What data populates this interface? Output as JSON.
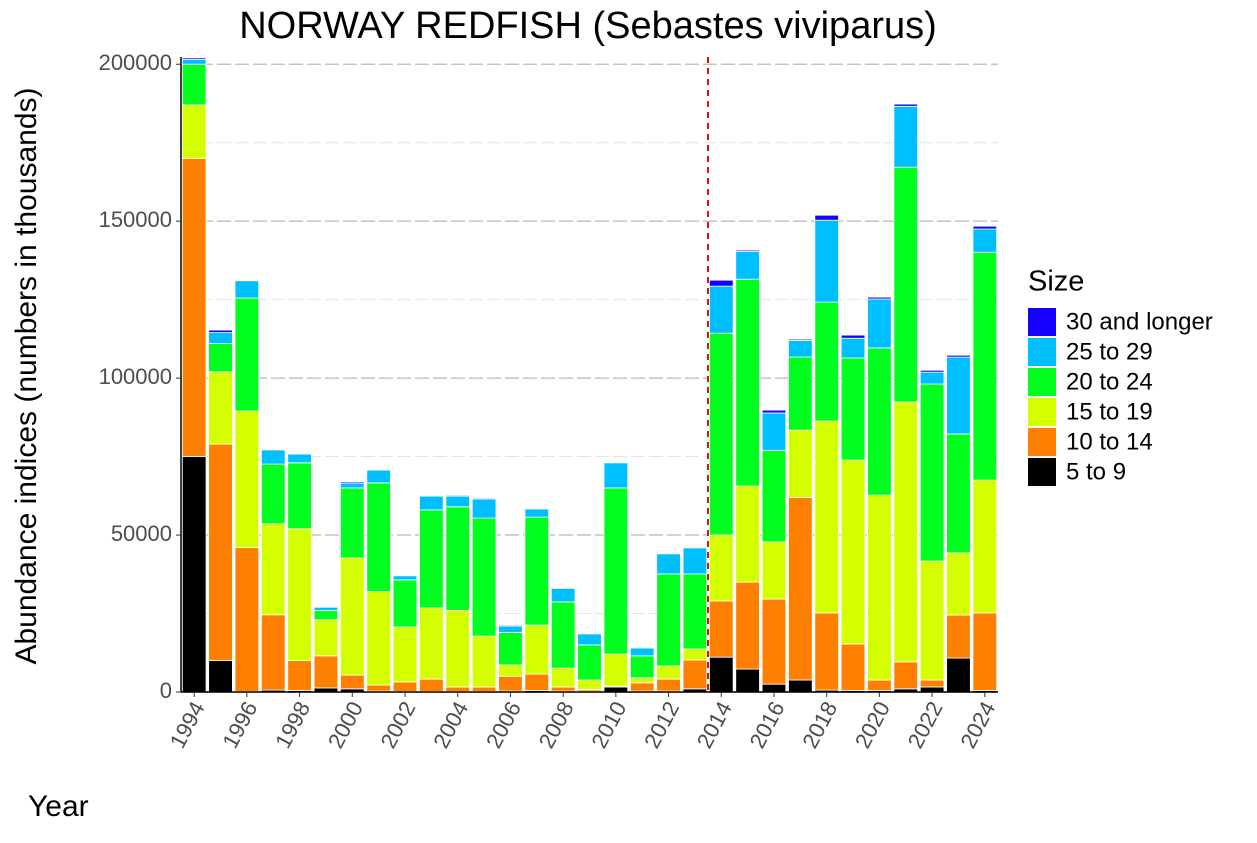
{
  "chart_data": {
    "type": "stacked_bar",
    "title": "NORWAY REDFISH (Sebastes viviparus)",
    "x_label": "Year",
    "y_label": "Abundance indices (numbers in thousands)",
    "legend_title": "Size",
    "legend_position": "right",
    "categories": [
      "1994",
      null,
      "1996",
      null,
      "1998",
      null,
      "2000",
      null,
      "2002",
      null,
      "2004",
      null,
      "2006",
      null,
      "2008",
      null,
      "2010",
      null,
      "2012",
      null,
      "2014",
      null,
      "2016",
      null,
      "2018",
      null,
      "2020",
      null,
      "2022",
      null,
      "2024"
    ],
    "series": [
      {
        "name": "5 to 9",
        "color": "#000000",
        "values": [
          75000,
          10000,
          200,
          600,
          500,
          1300,
          1000,
          300,
          200,
          200,
          200,
          200,
          300,
          500,
          300,
          300,
          1600,
          300,
          300,
          1000,
          11100,
          7300,
          2500,
          3800,
          600,
          500,
          500,
          1000,
          1600,
          10800,
          500
        ]
      },
      {
        "name": "10 to 14",
        "color": "#ff7f00",
        "values": [
          95000,
          69000,
          45800,
          24000,
          9500,
          10200,
          4400,
          1900,
          3000,
          3900,
          1400,
          1400,
          4700,
          5200,
          1300,
          500,
          300,
          2600,
          3800,
          9200,
          17900,
          27700,
          27100,
          58200,
          24600,
          14800,
          3300,
          8600,
          2200,
          13700,
          24700
        ]
      },
      {
        "name": "15 to 19",
        "color": "#d4ff00",
        "values": [
          17000,
          23000,
          43500,
          29000,
          42000,
          11500,
          37300,
          29800,
          17500,
          22700,
          24400,
          16200,
          3600,
          15600,
          6000,
          3000,
          10200,
          1600,
          4200,
          3500,
          21000,
          30600,
          18200,
          21400,
          61100,
          58600,
          58900,
          82800,
          37900,
          19800,
          42300
        ]
      },
      {
        "name": "20 to 24",
        "color": "#00ff1e",
        "values": [
          13000,
          9000,
          36000,
          19000,
          21000,
          3000,
          22300,
          34600,
          15000,
          31200,
          33000,
          37600,
          10400,
          34400,
          21100,
          11200,
          52900,
          7000,
          29300,
          23900,
          64300,
          65900,
          29200,
          23300,
          37900,
          32500,
          46900,
          74800,
          56400,
          37900,
          72600
        ]
      },
      {
        "name": "25 to 29",
        "color": "#00bfff",
        "values": [
          1500,
          3500,
          5500,
          4500,
          2800,
          1000,
          1600,
          4100,
          1300,
          4400,
          3400,
          6100,
          2000,
          2600,
          4300,
          3500,
          8000,
          2500,
          6400,
          8300,
          15000,
          8900,
          11900,
          5300,
          26100,
          6300,
          15600,
          19400,
          3800,
          24500,
          7400
        ]
      },
      {
        "name": "30 and longer",
        "color": "#1400ff",
        "values": [
          500,
          800,
          0,
          0,
          0,
          0,
          400,
          0,
          0,
          0,
          300,
          300,
          300,
          0,
          0,
          0,
          0,
          0,
          0,
          0,
          1900,
          400,
          900,
          400,
          1600,
          1000,
          600,
          700,
          600,
          600,
          900
        ]
      }
    ],
    "ylim": [
      0,
      202300
    ],
    "yticks": [
      0,
      50000,
      100000,
      150000,
      200000
    ],
    "yticks_minor": [
      25000,
      75000,
      125000,
      175000
    ],
    "grid": true
  }
}
